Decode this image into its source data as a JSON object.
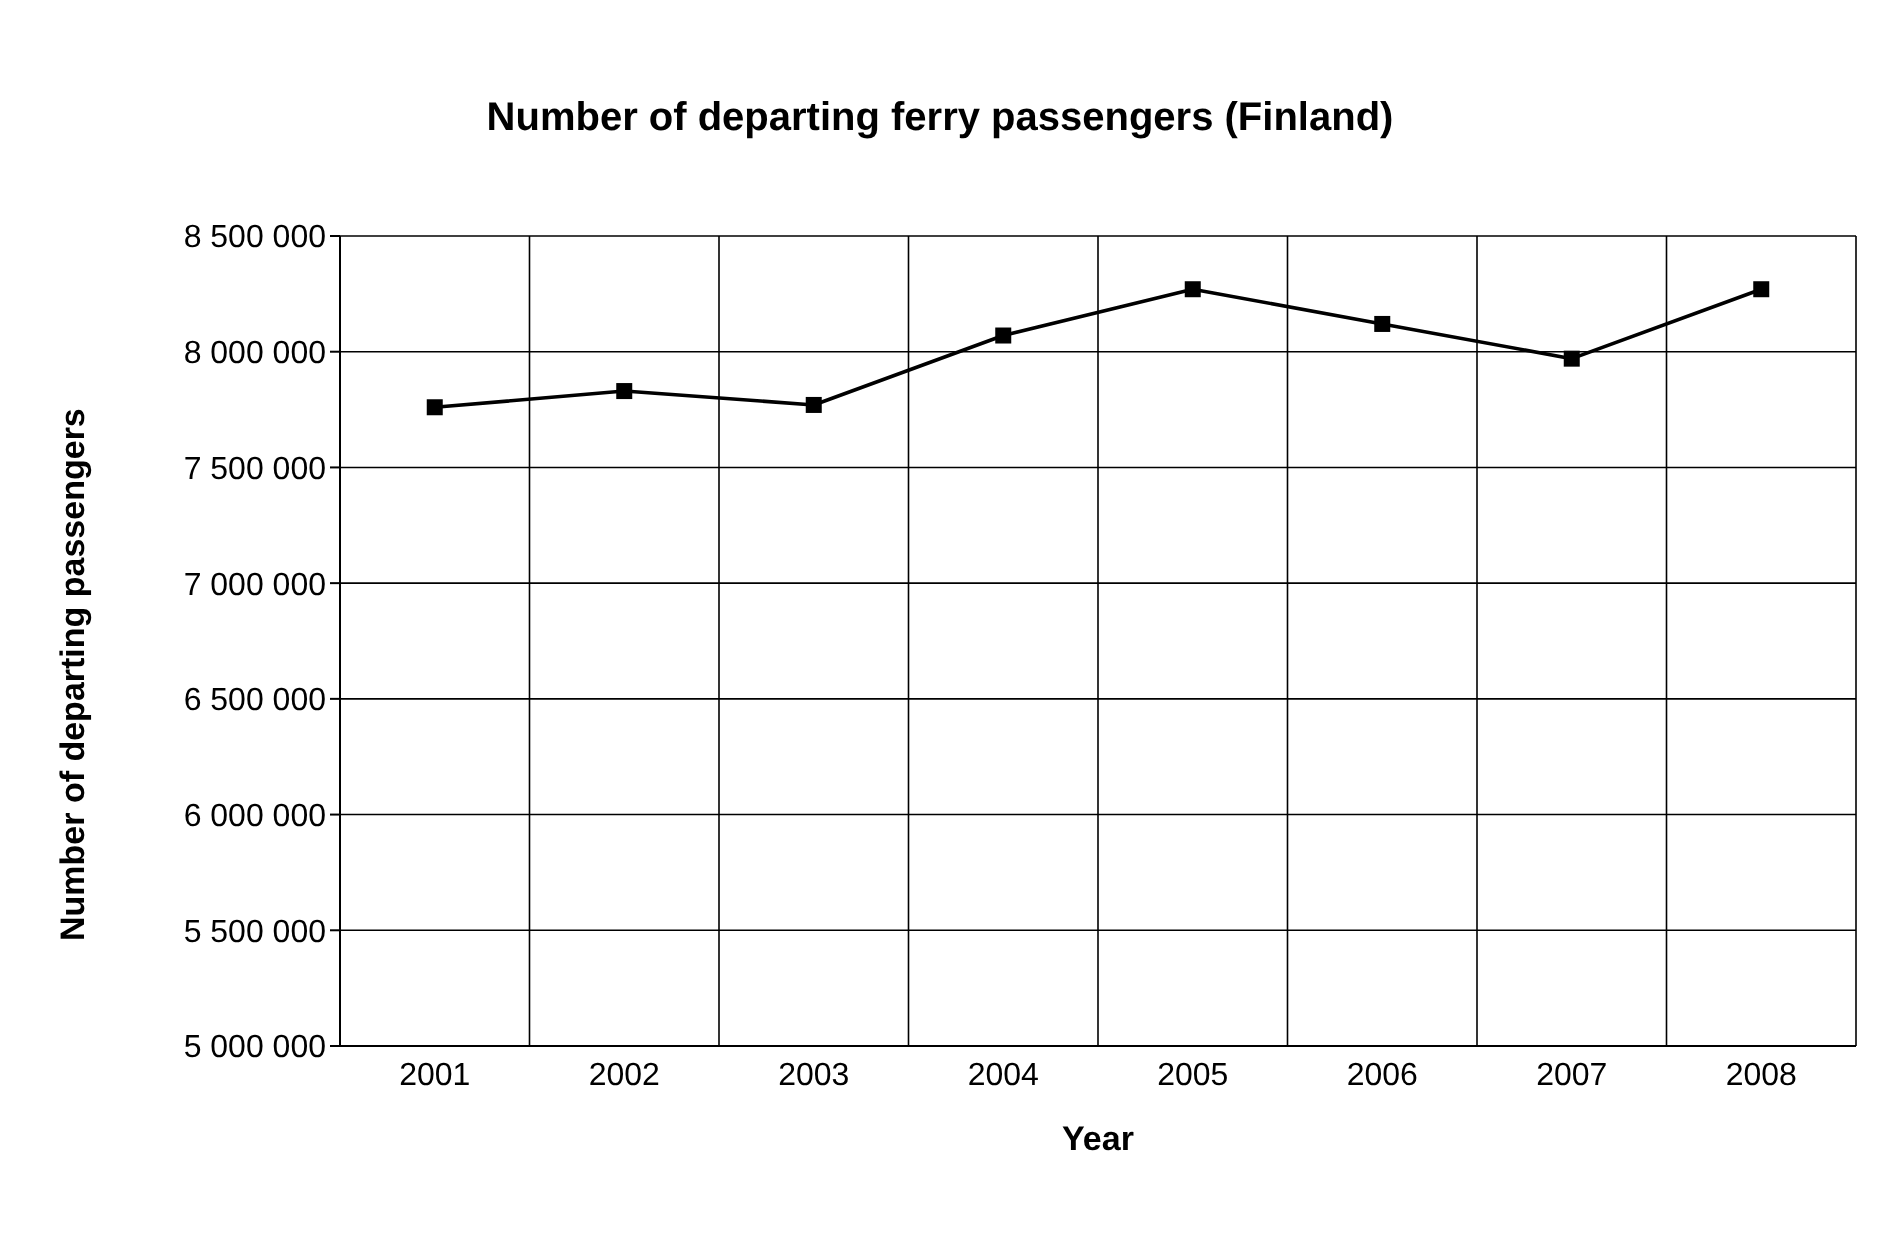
{
  "chart_data": {
    "type": "line",
    "title": "Number of departing ferry passengers (Finland)",
    "xlabel": "Year",
    "ylabel": "Number of departing passengers",
    "categories": [
      "2001",
      "2002",
      "2003",
      "2004",
      "2005",
      "2006",
      "2007",
      "2008"
    ],
    "series": [
      {
        "color": "#000000",
        "values": [
          7760000,
          7830000,
          7770000,
          8070000,
          8270000,
          8120000,
          7970000,
          8270000
        ]
      }
    ],
    "ylim": [
      5000000,
      8500000
    ],
    "yticks": [
      5000000,
      5500000,
      6000000,
      6500000,
      7000000,
      7500000,
      8000000,
      8500000
    ],
    "grid": true,
    "legend": false,
    "marker": "square",
    "line_style": "solid"
  }
}
